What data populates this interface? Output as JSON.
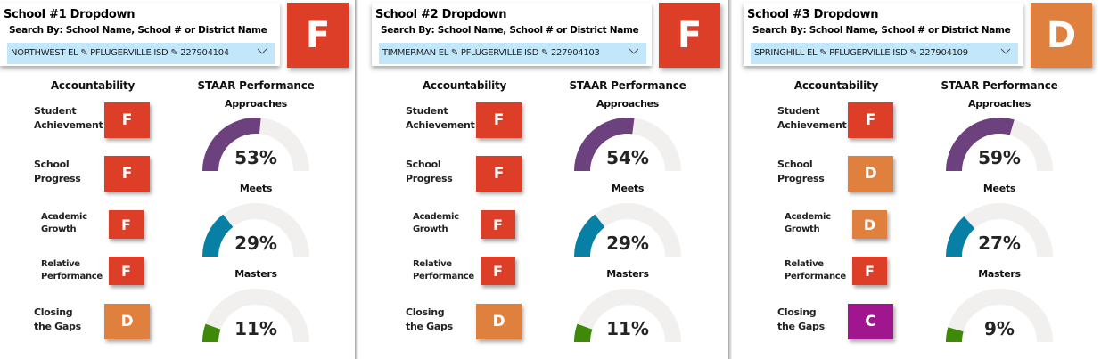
{
  "colors": {
    "grade_F": "#dc3e28",
    "grade_D": "#e0803f",
    "grade_C": "#a0168e",
    "approaches": "#6d417e",
    "meets": "#087fa5",
    "masters": "#3e8a08",
    "gauge_track": "#f1f0ef",
    "dropdown_bg": "#c2e7fb"
  },
  "icons": {
    "separator": "pencil-icon",
    "chevron": "chevron-down-icon"
  },
  "separator_glyph": "✎",
  "chevron_glyph": "﹀",
  "panels": [
    {
      "dropdown": {
        "title": "School #1 Dropdown",
        "subtitle": "Search By: School Name, School # or District Name",
        "value": "NORTHWEST EL ✎ PFLUGERVILLE ISD ✎ 227904104"
      },
      "overall_grade": "F",
      "accountability": {
        "heading": "Accountability",
        "items": [
          {
            "label1": "Student",
            "label2": "Achievement",
            "grade": "F"
          },
          {
            "label1": "School",
            "label2": "Progress",
            "grade": "F"
          },
          {
            "label1": "Academic",
            "label2": "Growth",
            "grade": "F"
          },
          {
            "label1": "Relative",
            "label2": "Performance",
            "grade": "F"
          },
          {
            "label1": "Closing",
            "label2": "the Gaps",
            "grade": "D"
          }
        ]
      },
      "staar": {
        "heading": "STAAR Performance",
        "gauges": [
          {
            "label": "Approaches",
            "value": 53,
            "display": "53%"
          },
          {
            "label": "Meets",
            "value": 29,
            "display": "29%"
          },
          {
            "label": "Masters",
            "value": 11,
            "display": "11%"
          }
        ]
      }
    },
    {
      "dropdown": {
        "title": "School #2 Dropdown",
        "subtitle": "Search By: School Name, School # or District Name",
        "value": "TIMMERMAN EL ✎ PFLUGERVILLE ISD ✎ 227904103"
      },
      "overall_grade": "F",
      "accountability": {
        "heading": "Accountability",
        "items": [
          {
            "label1": "Student",
            "label2": "Achievement",
            "grade": "F"
          },
          {
            "label1": "School",
            "label2": "Progress",
            "grade": "F"
          },
          {
            "label1": "Academic",
            "label2": "Growth",
            "grade": "F"
          },
          {
            "label1": "Relative",
            "label2": "Performance",
            "grade": "F"
          },
          {
            "label1": "Closing",
            "label2": "the Gaps",
            "grade": "D"
          }
        ]
      },
      "staar": {
        "heading": "STAAR Performance",
        "gauges": [
          {
            "label": "Approaches",
            "value": 54,
            "display": "54%"
          },
          {
            "label": "Meets",
            "value": 29,
            "display": "29%"
          },
          {
            "label": "Masters",
            "value": 11,
            "display": "11%"
          }
        ]
      }
    },
    {
      "dropdown": {
        "title": "School #3 Dropdown",
        "subtitle": "Search By: School Name, School # or District Name",
        "value": "SPRINGHILL EL ✎ PFLUGERVILLE ISD ✎ 227904109"
      },
      "overall_grade": "D",
      "accountability": {
        "heading": "Accountability",
        "items": [
          {
            "label1": "Student",
            "label2": "Achievement",
            "grade": "F"
          },
          {
            "label1": "School",
            "label2": "Progress",
            "grade": "D"
          },
          {
            "label1": "Academic",
            "label2": "Growth",
            "grade": "D"
          },
          {
            "label1": "Relative",
            "label2": "Performance",
            "grade": "F"
          },
          {
            "label1": "Closing",
            "label2": "the Gaps",
            "grade": "C"
          }
        ]
      },
      "staar": {
        "heading": "STAAR Performance",
        "gauges": [
          {
            "label": "Approaches",
            "value": 59,
            "display": "59%"
          },
          {
            "label": "Meets",
            "value": 27,
            "display": "27%"
          },
          {
            "label": "Masters",
            "value": 9,
            "display": "9%"
          }
        ]
      }
    }
  ]
}
